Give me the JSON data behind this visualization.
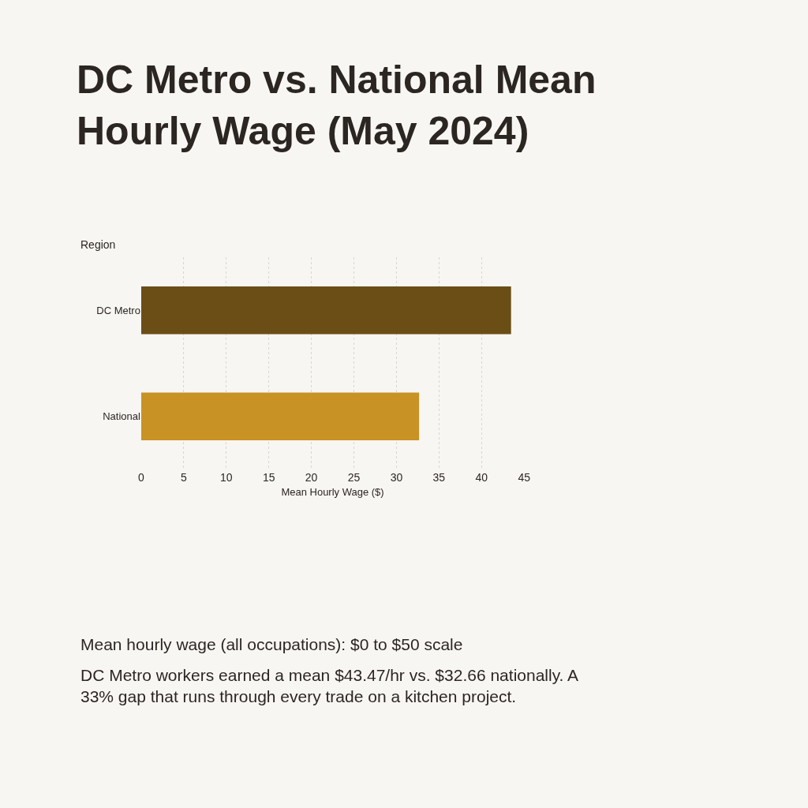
{
  "chart_data": {
    "type": "bar",
    "orientation": "horizontal",
    "title": "DC Metro vs. National Mean Hourly Wage (May 2024)",
    "xlabel": "Mean Hourly Wage ($)",
    "ylabel": "Region",
    "categories": [
      "DC Metro",
      "National"
    ],
    "values": [
      43.47,
      32.66
    ],
    "colors": [
      "#6b4e16",
      "#c89224"
    ],
    "xlim": [
      0,
      45
    ],
    "xticks": [
      0,
      5,
      10,
      15,
      20,
      25,
      30,
      35,
      40,
      45
    ],
    "grid": "x",
    "legend": false,
    "annotations": [
      "Mean hourly wage (all occupations): $0 to $50 scale",
      "DC Metro workers earned a mean $43.47/hr vs. $32.66 nationally. A 33% gap that runs through every trade on a kitchen project."
    ]
  }
}
